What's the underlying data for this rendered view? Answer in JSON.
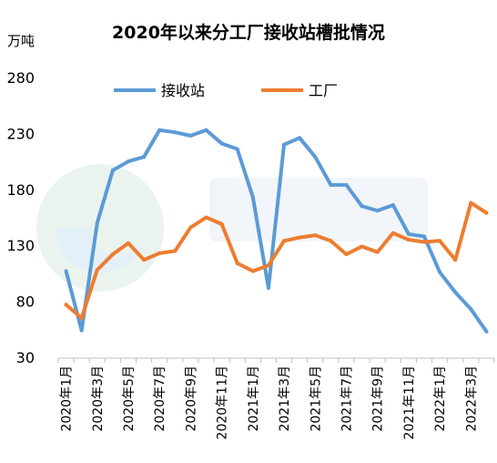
{
  "chart_data": {
    "type": "line",
    "title": "2020年以来分工厂接收站槽批情况",
    "ylabel": "万吨",
    "xlabel": "",
    "ylim": [
      30,
      280
    ],
    "yticks": [
      30,
      80,
      130,
      180,
      230,
      280
    ],
    "x": [
      "2020年1月",
      "2020年2月",
      "2020年3月",
      "2020年4月",
      "2020年5月",
      "2020年6月",
      "2020年7月",
      "2020年8月",
      "2020年9月",
      "2020年10月",
      "2020年11月",
      "2020年12月",
      "2021年1月",
      "2021年2月",
      "2021年3月",
      "2021年4月",
      "2021年5月",
      "2021年6月",
      "2021年7月",
      "2021年8月",
      "2021年9月",
      "2021年10月",
      "2021年11月",
      "2021年12月",
      "2022年1月",
      "2022年2月",
      "2022年3月",
      "2022年4月"
    ],
    "xtick_labels": [
      "2020年1月",
      "2020年3月",
      "2020年5月",
      "2020年7月",
      "2020年9月",
      "2020年11月",
      "2021年1月",
      "2021年3月",
      "2021年5月",
      "2021年7月",
      "2021年9月",
      "2021年11月",
      "2022年1月",
      "2022年3月"
    ],
    "grid": false,
    "legend_position": "top",
    "series": [
      {
        "name": "接收站",
        "color": "#5b9bd5",
        "values": [
          107,
          54,
          150,
          197,
          205,
          209,
          233,
          231,
          228,
          233,
          221,
          216,
          173,
          92,
          220,
          226,
          209,
          184,
          184,
          165,
          161,
          166,
          140,
          138,
          106,
          88,
          73,
          53
        ]
      },
      {
        "name": "工厂",
        "color": "#ed7d31",
        "values": [
          77,
          65,
          108,
          122,
          132,
          117,
          123,
          125,
          146,
          155,
          149,
          114,
          107,
          112,
          134,
          137,
          139,
          134,
          122,
          129,
          124,
          141,
          135,
          133,
          134,
          117,
          168,
          159
        ]
      }
    ]
  }
}
